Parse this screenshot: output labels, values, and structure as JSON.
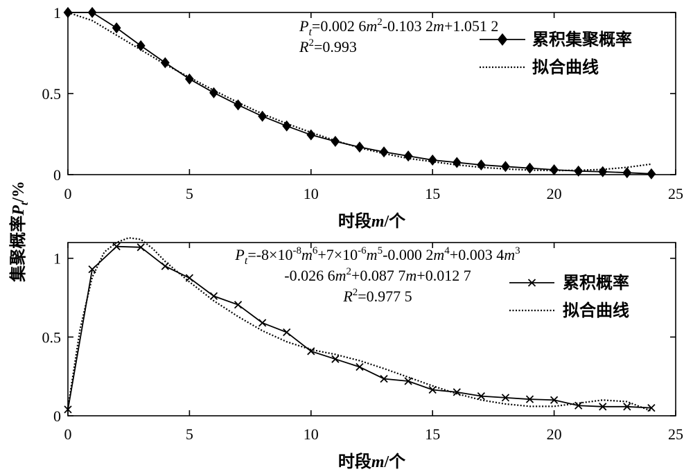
{
  "y_axis_label": {
    "prefix": "集聚概率",
    "P": "P",
    "sub": "t",
    "suffix": "/%"
  },
  "chart_data": [
    {
      "type": "line",
      "xlabel": {
        "text": "时段",
        "var": "m",
        "suffix": "/个"
      },
      "xlim": [
        0,
        25
      ],
      "ylim": [
        0,
        1
      ],
      "xticks": [
        0,
        5,
        10,
        15,
        20,
        25
      ],
      "yticks": [
        0,
        0.5,
        1
      ],
      "ytick_labels": [
        "0",
        "0.5",
        "1"
      ],
      "grid": false,
      "legend_position": "top-right",
      "equation_lines": [
        [
          {
            "t": "P"
          },
          {
            "t": "t",
            "sub": true
          },
          {
            "t": "=0.002 6"
          },
          {
            "t": "m"
          },
          {
            "t": "2",
            "sup": true
          },
          {
            "t": "-0.103 2"
          },
          {
            "t": "m"
          },
          {
            "t": "+1.051 2"
          }
        ],
        [
          {
            "t": "R"
          },
          {
            "t": "2",
            "sup": true
          },
          {
            "t": "=0.993"
          }
        ]
      ],
      "series": [
        {
          "name": "累积集聚概率",
          "marker": "diamond",
          "line": "solid",
          "x": [
            0,
            1,
            2,
            3,
            4,
            5,
            6,
            7,
            8,
            9,
            10,
            11,
            12,
            13,
            14,
            15,
            16,
            17,
            18,
            19,
            20,
            21,
            22,
            23,
            24
          ],
          "y": [
            1.0,
            1.0,
            0.905,
            0.795,
            0.69,
            0.59,
            0.505,
            0.43,
            0.36,
            0.3,
            0.245,
            0.205,
            0.17,
            0.14,
            0.115,
            0.09,
            0.075,
            0.06,
            0.05,
            0.04,
            0.03,
            0.022,
            0.018,
            0.012,
            0.005
          ]
        },
        {
          "name": "拟合曲线",
          "marker": "none",
          "line": "dotted",
          "x": [
            0,
            1,
            2,
            3,
            4,
            5,
            6,
            7,
            8,
            9,
            10,
            11,
            12,
            13,
            14,
            15,
            16,
            17,
            18,
            19,
            20,
            21,
            22,
            23,
            24
          ],
          "y": [
            1.0,
            0.95,
            0.86,
            0.77,
            0.68,
            0.6,
            0.52,
            0.445,
            0.375,
            0.315,
            0.26,
            0.21,
            0.165,
            0.13,
            0.1,
            0.08,
            0.06,
            0.045,
            0.035,
            0.028,
            0.025,
            0.027,
            0.032,
            0.045,
            0.065
          ]
        }
      ]
    },
    {
      "type": "line",
      "xlabel": {
        "text": "时段",
        "var": "m",
        "suffix": "/个"
      },
      "xlim": [
        0,
        25
      ],
      "ylim": [
        0,
        1.1
      ],
      "xticks": [
        0,
        5,
        10,
        15,
        20,
        25
      ],
      "yticks": [
        0,
        0.5,
        1
      ],
      "ytick_labels": [
        "0",
        "0.5",
        "1"
      ],
      "grid": false,
      "legend_position": "top-right",
      "equation_lines": [
        [
          {
            "t": "P"
          },
          {
            "t": "t",
            "sub": true
          },
          {
            "t": "=-8×10"
          },
          {
            "t": "-8",
            "sup": true
          },
          {
            "t": "m"
          },
          {
            "t": "6",
            "sup": true
          },
          {
            "t": "+7×10"
          },
          {
            "t": "-6",
            "sup": true
          },
          {
            "t": "m"
          },
          {
            "t": "5",
            "sup": true
          },
          {
            "t": "-0.000 2"
          },
          {
            "t": "m"
          },
          {
            "t": "4",
            "sup": true
          },
          {
            "t": "+0.003 4"
          },
          {
            "t": "m"
          },
          {
            "t": "3",
            "sup": true
          }
        ],
        [
          {
            "t": "-0.026 6"
          },
          {
            "t": "m"
          },
          {
            "t": "2",
            "sup": true
          },
          {
            "t": "+0.087 7"
          },
          {
            "t": "m"
          },
          {
            "t": "+0.012 7"
          }
        ],
        [
          {
            "t": "R"
          },
          {
            "t": "2",
            "sup": true
          },
          {
            "t": "=0.977 5"
          }
        ]
      ],
      "series": [
        {
          "name": "累积概率",
          "marker": "x",
          "line": "solid",
          "x": [
            0,
            1,
            2,
            3,
            4,
            5,
            6,
            7,
            8,
            9,
            10,
            11,
            12,
            13,
            14,
            15,
            16,
            17,
            18,
            19,
            20,
            21,
            22,
            23,
            24
          ],
          "y": [
            0.04,
            0.93,
            1.075,
            1.07,
            0.95,
            0.875,
            0.76,
            0.705,
            0.59,
            0.53,
            0.41,
            0.36,
            0.31,
            0.235,
            0.22,
            0.165,
            0.15,
            0.125,
            0.115,
            0.105,
            0.1,
            0.065,
            0.058,
            0.058,
            0.05
          ]
        },
        {
          "name": "拟合曲线",
          "marker": "none",
          "line": "dotted",
          "x": [
            0,
            0.5,
            1,
            1.5,
            2,
            2.5,
            3,
            3.5,
            4,
            5,
            6,
            7,
            8,
            9,
            10,
            11,
            12,
            13,
            14,
            15,
            16,
            17,
            18,
            19,
            20,
            21,
            22,
            23,
            24
          ],
          "y": [
            0.05,
            0.55,
            0.88,
            1.04,
            1.1,
            1.13,
            1.12,
            1.06,
            0.98,
            0.85,
            0.73,
            0.63,
            0.54,
            0.47,
            0.42,
            0.39,
            0.35,
            0.3,
            0.245,
            0.19,
            0.14,
            0.1,
            0.075,
            0.06,
            0.06,
            0.08,
            0.1,
            0.09,
            0.03
          ]
        }
      ]
    }
  ]
}
